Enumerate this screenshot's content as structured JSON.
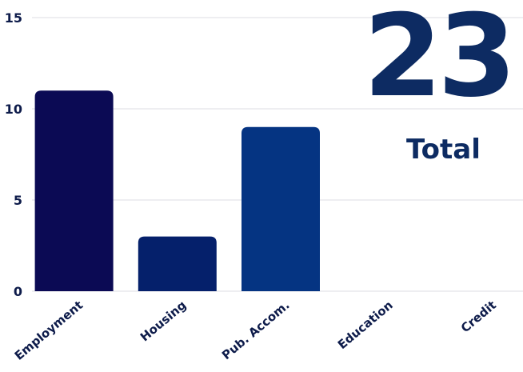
{
  "chart_data": {
    "type": "bar",
    "categories": [
      "Employment",
      "Housing",
      "Pub. Accom.",
      "Education",
      "Credit"
    ],
    "values": [
      11,
      3,
      9,
      0,
      0
    ],
    "bar_colors": [
      "#0b0a54",
      "#05206b",
      "#053482",
      "#053482",
      "#053482"
    ],
    "yticks": [
      "0",
      "5",
      "10",
      "15"
    ],
    "ylim": [
      0,
      15
    ],
    "grid": true,
    "title": "",
    "xlabel": "",
    "ylabel": ""
  },
  "summary": {
    "total_value": "23",
    "total_label": "Total",
    "accent_color": "#0d2b62"
  }
}
